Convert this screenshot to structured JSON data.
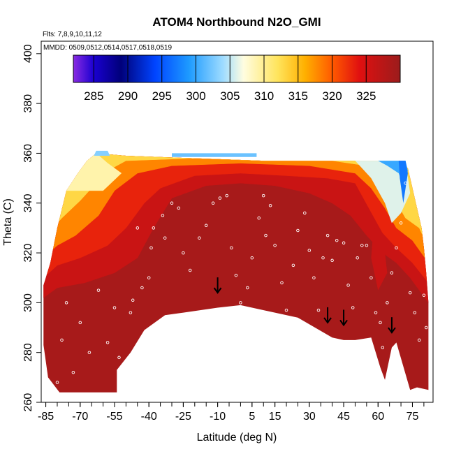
{
  "chart_data": {
    "type": "heatmap",
    "title": "ATOM4 Northbound N2O_GMI",
    "annotations": {
      "flights": "Flts: 7,8,9,10,11,12",
      "dates": "MMDD: 0509,0512,0514,0517,0518,0519"
    },
    "xlabel": "Latitude (deg N)",
    "ylabel": "Theta (C)",
    "xlim": [
      -87,
      84
    ],
    "ylim": [
      260,
      405
    ],
    "x_ticks": [
      -85,
      -70,
      -55,
      -40,
      -25,
      -10,
      5,
      15,
      30,
      45,
      60,
      75
    ],
    "x_tick_labels": [
      "-85",
      "-70",
      "-55",
      "-40",
      "-25",
      "-10",
      "5",
      "15",
      "30",
      "45",
      "60",
      "75"
    ],
    "y_ticks": [
      260,
      280,
      300,
      320,
      340,
      360,
      380,
      400
    ],
    "y_tick_labels": [
      "260",
      "280",
      "300",
      "320",
      "340",
      "360",
      "380",
      "400"
    ],
    "colorbar": {
      "range": [
        282,
        330
      ],
      "tick_values": [
        285,
        290,
        295,
        300,
        305,
        310,
        315,
        320,
        325
      ],
      "tick_labels": [
        "285",
        "290",
        "295",
        "300",
        "305",
        "310",
        "315",
        "320",
        "325"
      ],
      "color_stops": [
        {
          "value": 282,
          "color": "#8a2be2"
        },
        {
          "value": 285,
          "color": "#1a00d0"
        },
        {
          "value": 289,
          "color": "#00007a"
        },
        {
          "value": 294,
          "color": "#0044ff"
        },
        {
          "value": 299,
          "color": "#1e9bff"
        },
        {
          "value": 304,
          "color": "#9fdcff"
        },
        {
          "value": 307,
          "color": "#fffde0"
        },
        {
          "value": 312,
          "color": "#ffe45c"
        },
        {
          "value": 316,
          "color": "#ffb000"
        },
        {
          "value": 320,
          "color": "#ff5a00"
        },
        {
          "value": 324,
          "color": "#e01010"
        },
        {
          "value": 330,
          "color": "#9b1c1c"
        }
      ]
    },
    "field": {
      "background_value": 329,
      "upper_boundary": [
        {
          "lat": -86,
          "theta": 307
        },
        {
          "lat": -83,
          "theta": 316
        },
        {
          "lat": -80,
          "theta": 330
        },
        {
          "lat": -76,
          "theta": 345
        },
        {
          "lat": -71,
          "theta": 352
        },
        {
          "lat": -67,
          "theta": 357
        },
        {
          "lat": -63,
          "theta": 360
        },
        {
          "lat": -50,
          "theta": 359
        },
        {
          "lat": -20,
          "theta": 358
        },
        {
          "lat": 10,
          "theta": 357
        },
        {
          "lat": 40,
          "theta": 357
        },
        {
          "lat": 60,
          "theta": 357
        },
        {
          "lat": 70,
          "theta": 356
        },
        {
          "lat": 73,
          "theta": 354
        },
        {
          "lat": 75,
          "theta": 346
        },
        {
          "lat": 77,
          "theta": 338
        },
        {
          "lat": 79,
          "theta": 330
        },
        {
          "lat": 80,
          "theta": 322
        },
        {
          "lat": 81,
          "theta": 312
        },
        {
          "lat": 82,
          "theta": 300
        }
      ],
      "lower_boundary": [
        {
          "lat": 82,
          "theta": 265
        },
        {
          "lat": 77,
          "theta": 266
        },
        {
          "lat": 74,
          "theta": 265
        },
        {
          "lat": 68,
          "theta": 284
        },
        {
          "lat": 66,
          "theta": 282
        },
        {
          "lat": 63,
          "theta": 269
        },
        {
          "lat": 61,
          "theta": 274
        },
        {
          "lat": 57,
          "theta": 286
        },
        {
          "lat": 50,
          "theta": 285
        },
        {
          "lat": 45,
          "theta": 285
        },
        {
          "lat": 40,
          "theta": 286
        },
        {
          "lat": 25,
          "theta": 294
        },
        {
          "lat": 15,
          "theta": 296
        },
        {
          "lat": 0,
          "theta": 299
        },
        {
          "lat": -10,
          "theta": 298
        },
        {
          "lat": -25,
          "theta": 296
        },
        {
          "lat": -33,
          "theta": 295
        },
        {
          "lat": -42,
          "theta": 289
        },
        {
          "lat": -48,
          "theta": 280
        },
        {
          "lat": -54,
          "theta": 273
        },
        {
          "lat": -54,
          "theta": 264
        },
        {
          "lat": -79,
          "theta": 264
        },
        {
          "lat": -84,
          "theta": 270
        },
        {
          "lat": -86,
          "theta": 283
        }
      ],
      "bands": [
        {
          "value": 326,
          "upper": [
            {
              "lat": -86,
              "theta": 302
            },
            {
              "lat": -80,
              "theta": 306
            },
            {
              "lat": -68,
              "theta": 308
            },
            {
              "lat": -55,
              "theta": 312
            },
            {
              "lat": -45,
              "theta": 318
            },
            {
              "lat": -38,
              "theta": 330
            },
            {
              "lat": -30,
              "theta": 342
            },
            {
              "lat": -15,
              "theta": 347
            },
            {
              "lat": 0,
              "theta": 348
            },
            {
              "lat": 15,
              "theta": 347
            },
            {
              "lat": 30,
              "theta": 344
            },
            {
              "lat": 40,
              "theta": 340
            },
            {
              "lat": 48,
              "theta": 335
            },
            {
              "lat": 55,
              "theta": 327
            },
            {
              "lat": 62,
              "theta": 320
            },
            {
              "lat": 68,
              "theta": 316
            },
            {
              "lat": 74,
              "theta": 310
            },
            {
              "lat": 82,
              "theta": 300
            }
          ]
        },
        {
          "value": 323,
          "upper": [
            {
              "lat": -86,
              "theta": 310
            },
            {
              "lat": -80,
              "theta": 315
            },
            {
              "lat": -70,
              "theta": 318
            },
            {
              "lat": -58,
              "theta": 323
            },
            {
              "lat": -50,
              "theta": 330
            },
            {
              "lat": -42,
              "theta": 340
            },
            {
              "lat": -35,
              "theta": 346
            },
            {
              "lat": -20,
              "theta": 351
            },
            {
              "lat": 0,
              "theta": 352
            },
            {
              "lat": 20,
              "theta": 351
            },
            {
              "lat": 38,
              "theta": 350
            },
            {
              "lat": 50,
              "theta": 348
            },
            {
              "lat": 56,
              "theta": 338
            },
            {
              "lat": 62,
              "theta": 328
            },
            {
              "lat": 68,
              "theta": 322
            },
            {
              "lat": 75,
              "theta": 316
            },
            {
              "lat": 82,
              "theta": 308
            }
          ]
        },
        {
          "value": 318,
          "upper": [
            {
              "lat": -86,
              "theta": 318
            },
            {
              "lat": -80,
              "theta": 323
            },
            {
              "lat": -72,
              "theta": 327
            },
            {
              "lat": -62,
              "theta": 335
            },
            {
              "lat": -55,
              "theta": 345
            },
            {
              "lat": -45,
              "theta": 352
            },
            {
              "lat": -30,
              "theta": 355
            },
            {
              "lat": 0,
              "theta": 356
            },
            {
              "lat": 30,
              "theta": 355
            },
            {
              "lat": 50,
              "theta": 352
            },
            {
              "lat": 57,
              "theta": 346
            },
            {
              "lat": 63,
              "theta": 338
            },
            {
              "lat": 68,
              "theta": 330
            },
            {
              "lat": 75,
              "theta": 325
            },
            {
              "lat": 82,
              "theta": 316
            }
          ]
        },
        {
          "value": 313,
          "upper": [
            {
              "lat": -86,
              "theta": 326
            },
            {
              "lat": -78,
              "theta": 334
            },
            {
              "lat": -70,
              "theta": 341
            },
            {
              "lat": -63,
              "theta": 348
            },
            {
              "lat": -58,
              "theta": 353
            },
            {
              "lat": -50,
              "theta": 357
            },
            {
              "lat": -20,
              "theta": 358
            },
            {
              "lat": 10,
              "theta": 357
            },
            {
              "lat": 40,
              "theta": 357
            },
            {
              "lat": 55,
              "theta": 355
            },
            {
              "lat": 62,
              "theta": 350
            },
            {
              "lat": 67,
              "theta": 342
            },
            {
              "lat": 72,
              "theta": 334
            },
            {
              "lat": 78,
              "theta": 330
            },
            {
              "lat": 82,
              "theta": 322
            }
          ]
        },
        {
          "value": 309,
          "upper": [
            {
              "lat": -76,
              "theta": 345
            },
            {
              "lat": -71,
              "theta": 352
            },
            {
              "lat": -67,
              "theta": 357
            },
            {
              "lat": -63,
              "theta": 360
            },
            {
              "lat": -58,
              "theta": 356
            },
            {
              "lat": -52,
              "theta": 352
            },
            {
              "lat": -60,
              "theta": 345
            },
            {
              "lat": -76,
              "theta": 345
            }
          ]
        }
      ],
      "highlights": [
        {
          "value": 303,
          "points": [
            {
              "lat": -63,
              "theta": 361
            },
            {
              "lat": -58,
              "theta": 361
            },
            {
              "lat": -57,
              "theta": 359
            },
            {
              "lat": -64,
              "theta": 359
            }
          ]
        },
        {
          "value": 302,
          "points": [
            {
              "lat": -30,
              "theta": 360
            },
            {
              "lat": 7,
              "theta": 360
            },
            {
              "lat": 7,
              "theta": 358.5
            },
            {
              "lat": -30,
              "theta": 358.5
            }
          ]
        },
        {
          "value": 306,
          "points": [
            {
              "lat": 50,
              "theta": 357
            },
            {
              "lat": 72,
              "theta": 357
            },
            {
              "lat": 74,
              "theta": 344
            },
            {
              "lat": 70,
              "theta": 336
            },
            {
              "lat": 66,
              "theta": 332
            },
            {
              "lat": 63,
              "theta": 340
            },
            {
              "lat": 57,
              "theta": 350
            }
          ]
        },
        {
          "value": 300,
          "points": [
            {
              "lat": 60,
              "theta": 357
            },
            {
              "lat": 72,
              "theta": 357
            },
            {
              "lat": 73,
              "theta": 353
            },
            {
              "lat": 71,
              "theta": 347
            },
            {
              "lat": 69,
              "theta": 352
            },
            {
              "lat": 64,
              "theta": 355
            }
          ]
        },
        {
          "value": 297,
          "points": [
            {
              "lat": 69,
              "theta": 357
            },
            {
              "lat": 72,
              "theta": 357
            },
            {
              "lat": 73,
              "theta": 352
            },
            {
              "lat": 71,
              "theta": 340
            },
            {
              "lat": 69.5,
              "theta": 350
            }
          ]
        },
        {
          "value": 326,
          "points": [
            {
              "lat": 58,
              "theta": 330
            },
            {
              "lat": 62,
              "theta": 328
            },
            {
              "lat": 64,
              "theta": 312
            },
            {
              "lat": 60,
              "theta": 305
            },
            {
              "lat": 57,
              "theta": 318
            }
          ]
        }
      ]
    },
    "arrows": [
      {
        "lat": -10,
        "theta": 304
      },
      {
        "lat": 38,
        "theta": 292
      },
      {
        "lat": 45,
        "theta": 291
      },
      {
        "lat": 66,
        "theta": 288
      }
    ],
    "observations_sample": [
      {
        "lat": -53,
        "theta": 278
      },
      {
        "lat": -48,
        "theta": 296
      },
      {
        "lat": -47,
        "theta": 301
      },
      {
        "lat": -43,
        "theta": 306
      },
      {
        "lat": -40,
        "theta": 310
      },
      {
        "lat": -39,
        "theta": 322
      },
      {
        "lat": -38,
        "theta": 330
      },
      {
        "lat": -34,
        "theta": 335
      },
      {
        "lat": -30,
        "theta": 340
      },
      {
        "lat": -27,
        "theta": 338
      },
      {
        "lat": -25,
        "theta": 320
      },
      {
        "lat": -22,
        "theta": 313
      },
      {
        "lat": -18,
        "theta": 326
      },
      {
        "lat": -15,
        "theta": 331
      },
      {
        "lat": -12,
        "theta": 340
      },
      {
        "lat": -9,
        "theta": 342
      },
      {
        "lat": -6,
        "theta": 343
      },
      {
        "lat": -4,
        "theta": 322
      },
      {
        "lat": -2,
        "theta": 311
      },
      {
        "lat": 0,
        "theta": 300
      },
      {
        "lat": 3,
        "theta": 306
      },
      {
        "lat": 5,
        "theta": 318
      },
      {
        "lat": 8,
        "theta": 334
      },
      {
        "lat": 10,
        "theta": 343
      },
      {
        "lat": 13,
        "theta": 339
      },
      {
        "lat": 15,
        "theta": 323
      },
      {
        "lat": 18,
        "theta": 308
      },
      {
        "lat": 20,
        "theta": 297
      },
      {
        "lat": 23,
        "theta": 315
      },
      {
        "lat": 25,
        "theta": 329
      },
      {
        "lat": 28,
        "theta": 336
      },
      {
        "lat": 30,
        "theta": 321
      },
      {
        "lat": 32,
        "theta": 310
      },
      {
        "lat": 34,
        "theta": 297
      },
      {
        "lat": 36,
        "theta": 318
      },
      {
        "lat": 38,
        "theta": 327
      },
      {
        "lat": 40,
        "theta": 317
      },
      {
        "lat": 42,
        "theta": 325
      },
      {
        "lat": 45,
        "theta": 324
      },
      {
        "lat": 47,
        "theta": 307
      },
      {
        "lat": 49,
        "theta": 298
      },
      {
        "lat": 51,
        "theta": 318
      },
      {
        "lat": 53,
        "theta": 323
      },
      {
        "lat": 55,
        "theta": 323
      },
      {
        "lat": 57,
        "theta": 310
      },
      {
        "lat": 59,
        "theta": 296
      },
      {
        "lat": 61,
        "theta": 292
      },
      {
        "lat": 62,
        "theta": 282
      },
      {
        "lat": 64,
        "theta": 300
      },
      {
        "lat": 66,
        "theta": 312
      },
      {
        "lat": 68,
        "theta": 322
      },
      {
        "lat": 70,
        "theta": 332
      },
      {
        "lat": 72,
        "theta": 348
      },
      {
        "lat": 74,
        "theta": 304
      },
      {
        "lat": 76,
        "theta": 296
      },
      {
        "lat": 78,
        "theta": 285
      },
      {
        "lat": 80,
        "theta": 303
      },
      {
        "lat": 81,
        "theta": 290
      },
      {
        "lat": -80,
        "theta": 268
      },
      {
        "lat": -78,
        "theta": 285
      },
      {
        "lat": -76,
        "theta": 300
      },
      {
        "lat": -73,
        "theta": 272
      },
      {
        "lat": -70,
        "theta": 292
      },
      {
        "lat": -66,
        "theta": 280
      },
      {
        "lat": -62,
        "theta": 305
      },
      {
        "lat": -58,
        "theta": 284
      },
      {
        "lat": -55,
        "theta": 298
      },
      {
        "lat": -45,
        "theta": 330
      },
      {
        "lat": -33,
        "theta": 326
      },
      {
        "lat": 11,
        "theta": 327
      }
    ]
  }
}
